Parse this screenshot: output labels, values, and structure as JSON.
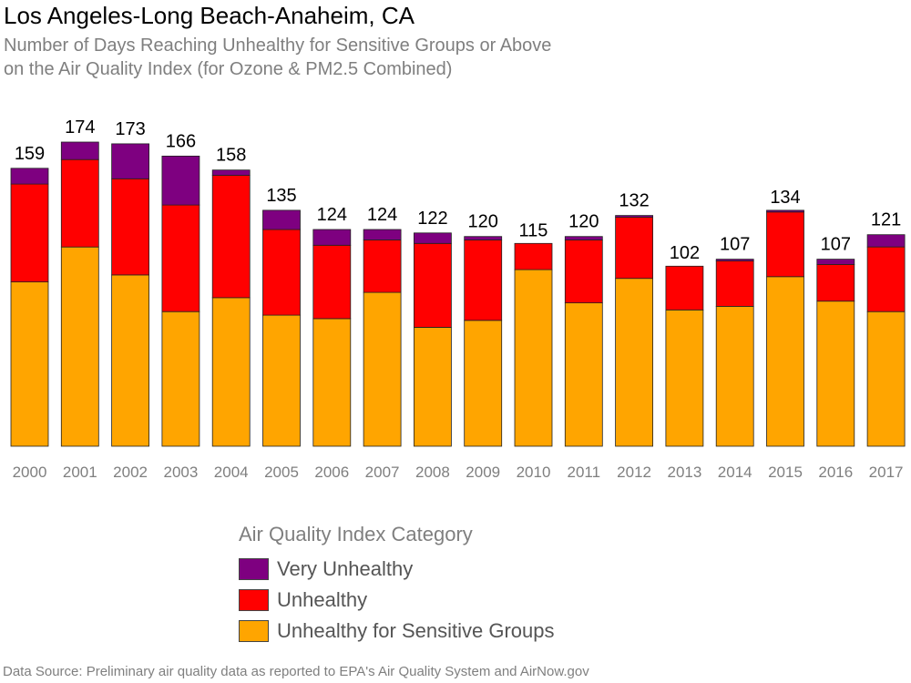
{
  "title": "Los Angeles-Long Beach-Anaheim, CA",
  "subtitle_lines": [
    "Number of Days Reaching Unhealthy for Sensitive Groups or Above",
    "on the Air Quality Index (for Ozone & PM2.5 Combined)"
  ],
  "legend": {
    "title": "Air Quality Index Category",
    "items": [
      {
        "label": "Very Unhealthy",
        "color": "#7e0080"
      },
      {
        "label": "Unhealthy",
        "color": "#ff0000"
      },
      {
        "label": "Unhealthy for Sensitive Groups",
        "color": "#ffa500"
      }
    ]
  },
  "source": "Data Source: Preliminary air quality data as reported to EPA's Air Quality System and AirNow.gov",
  "chart_data": {
    "type": "bar",
    "stacked": true,
    "categories": [
      "2000",
      "2001",
      "2002",
      "2003",
      "2004",
      "2005",
      "2006",
      "2007",
      "2008",
      "2009",
      "2010",
      "2011",
      "2012",
      "2013",
      "2014",
      "2015",
      "2016",
      "2017"
    ],
    "series": [
      {
        "name": "Unhealthy for Sensitive Groups",
        "color": "#ffa500",
        "values": [
          94,
          114,
          98,
          77,
          85,
          75,
          73,
          88,
          68,
          72,
          101,
          82,
          96,
          78,
          80,
          97,
          83,
          77
        ]
      },
      {
        "name": "Unhealthy",
        "color": "#ff0000",
        "values": [
          56,
          50,
          55,
          61,
          70,
          49,
          42,
          30,
          48,
          46,
          15,
          36,
          35,
          25,
          26,
          37,
          21,
          37
        ]
      },
      {
        "name": "Very Unhealthy",
        "color": "#7e0080",
        "values": [
          9,
          10,
          20,
          28,
          3,
          11,
          9,
          6,
          6,
          2,
          0,
          2,
          1,
          0,
          1,
          1,
          3,
          7
        ]
      }
    ],
    "totals": [
      159,
      174,
      173,
      166,
      158,
      135,
      124,
      124,
      122,
      120,
      115,
      120,
      132,
      102,
      107,
      134,
      107,
      121
    ],
    "ylim": [
      0,
      174
    ],
    "grid": false,
    "legend_position": "bottom"
  }
}
